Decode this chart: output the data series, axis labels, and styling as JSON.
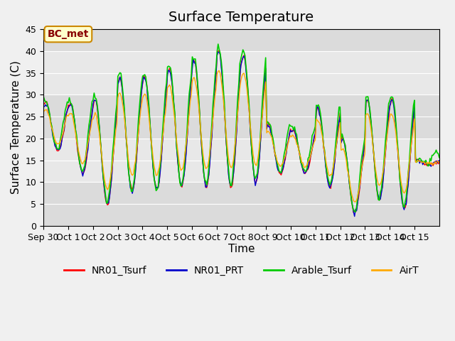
{
  "title": "Surface Temperature",
  "ylabel": "Surface Temperature (C)",
  "xlabel": "Time",
  "ylim": [
    0,
    45
  ],
  "yticks": [
    0,
    5,
    10,
    15,
    20,
    25,
    30,
    35,
    40,
    45
  ],
  "xtick_labels": [
    "Sep 30",
    "Oct 1",
    "Oct 2",
    "Oct 3",
    "Oct 4",
    "Oct 5",
    "Oct 6",
    "Oct 7",
    "Oct 8",
    "Oct 9",
    "Oct 10",
    "Oct 11",
    "Oct 12",
    "Oct 13",
    "Oct 14",
    "Oct 15"
  ],
  "colors": {
    "NR01_Tsurf": "#ff0000",
    "NR01_PRT": "#0000cc",
    "Arable_Tsurf": "#00cc00",
    "AirT": "#ffaa00"
  },
  "annotation_text": "BC_met",
  "annotation_bg": "#ffffcc",
  "annotation_border": "#cc8800",
  "fig_bg": "#f0f0f0",
  "plot_bg": "#e8e8e8",
  "title_fontsize": 14,
  "label_fontsize": 11,
  "tick_fontsize": 9,
  "legend_fontsize": 10,
  "n_days": 16,
  "peak_profile": [
    28,
    28,
    29,
    34,
    34,
    36,
    38,
    40,
    39,
    23,
    22,
    27,
    20,
    29,
    29,
    15
  ],
  "min_profile": [
    17,
    12,
    5,
    8,
    8,
    9,
    9,
    9,
    10,
    12,
    12,
    9,
    3,
    6,
    4,
    14
  ]
}
